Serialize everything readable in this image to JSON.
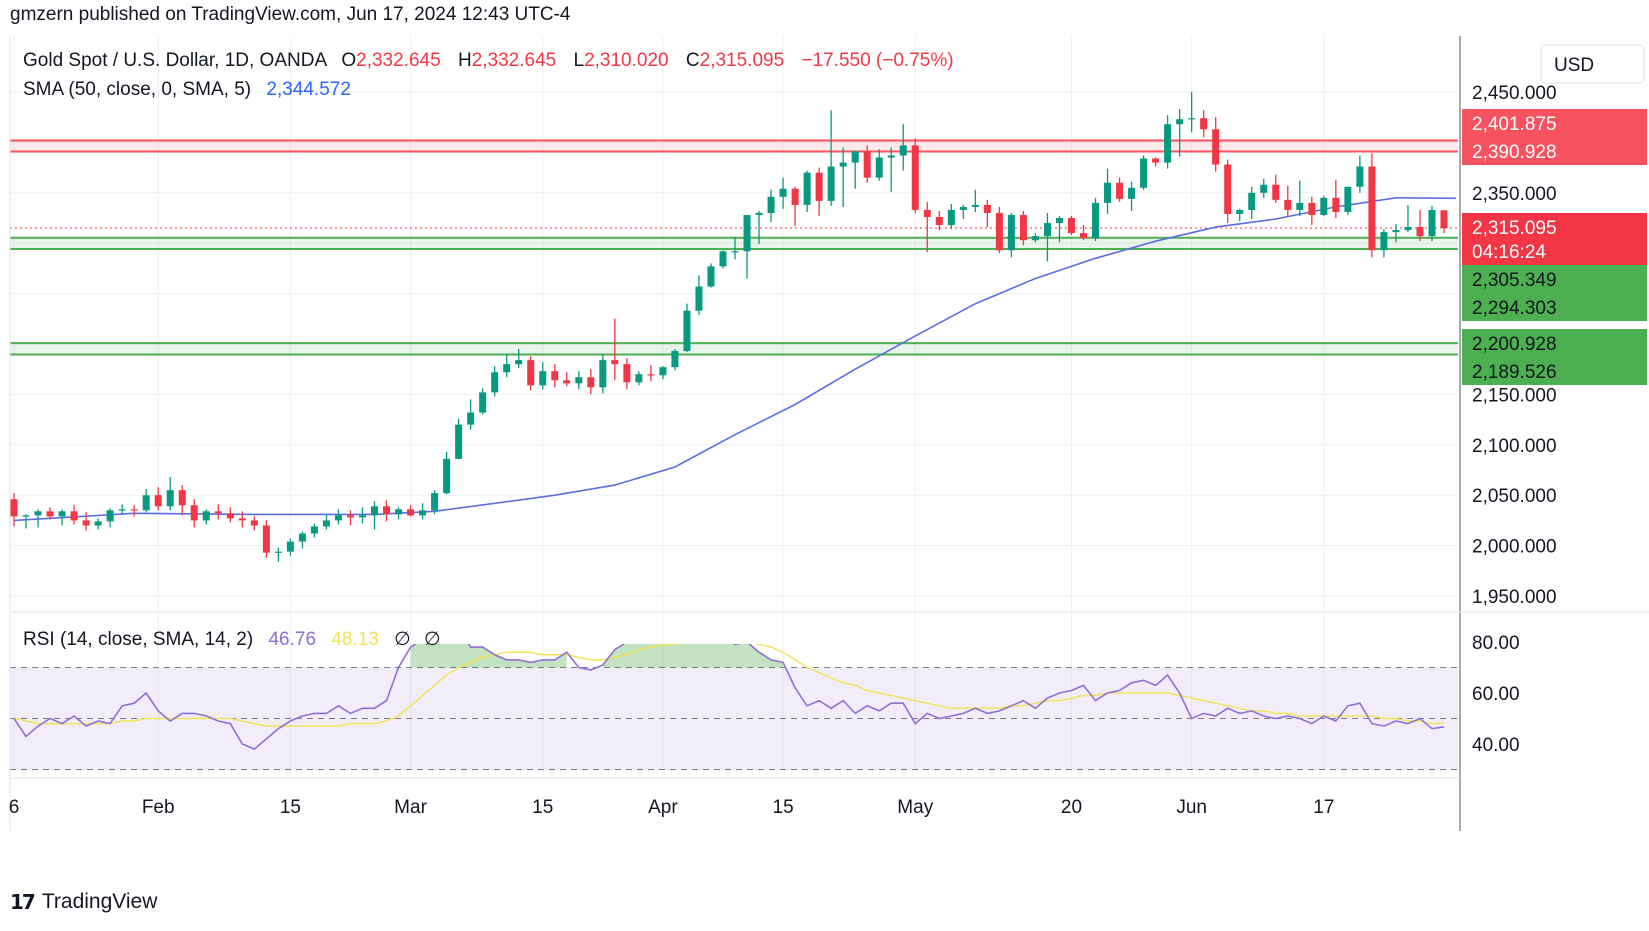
{
  "header": {
    "publish_line": "gmzern published on TradingView.com, Jun 17, 2024 12:43 UTC-4"
  },
  "footer": {
    "logo_glyph": "17",
    "brand": "TradingView"
  },
  "currency": "USD",
  "legend": {
    "symbol": "Gold Spot / U.S. Dollar, 1D, OANDA",
    "o_label": "O",
    "o_value": "2,332.645",
    "h_label": "H",
    "h_value": "2,332.645",
    "l_label": "L",
    "l_value": "2,310.020",
    "c_label": "C",
    "c_value": "2,315.095",
    "change": "−17.550 (−0.75%)",
    "sma_label": "SMA (50, close, 0, SMA, 5)",
    "sma_value": "2,344.572",
    "rsi_label": "RSI (14, close, SMA, 14, 2)",
    "rsi_value": "46.76",
    "rsi_sma_value": "48.13",
    "rsi_extra1": "∅",
    "rsi_extra2": "∅"
  },
  "price_tags": [
    {
      "text": "2,401.875",
      "bg": "#f7525f"
    },
    {
      "text": "2,390.928",
      "bg": "#f7525f"
    },
    {
      "text": "2,315.095",
      "bg": "#f23645"
    },
    {
      "text": "04:16:24",
      "bg": "#f23645"
    },
    {
      "text": "2,305.349",
      "bg": "#4caf50"
    },
    {
      "text": "2,294.303",
      "bg": "#4caf50"
    },
    {
      "text": "2,200.928",
      "bg": "#4caf50"
    },
    {
      "text": "2,189.526",
      "bg": "#4caf50"
    }
  ],
  "colors": {
    "up": "#089981",
    "down": "#f23645",
    "sma": "#5b6ee1",
    "rsi": "#8e6fd6",
    "rsi_sma": "#f2e35a",
    "resistance": "#f7525f",
    "support": "#4caf50",
    "grid": "#eef0f3"
  },
  "chart_data": [
    {
      "type": "candlestick",
      "title": "Gold Spot / U.S. Dollar, 1D, OANDA",
      "price_axis_ticks": [
        "2,450.000",
        "2,350.000",
        "2,150.000",
        "2,100.000",
        "2,050.000",
        "2,000.000",
        "1,950.000"
      ],
      "time_axis_ticks": [
        "6",
        "Feb",
        "15",
        "Mar",
        "15",
        "Apr",
        "15",
        "May",
        "20",
        "Jun",
        "17"
      ],
      "ylim": [
        1940,
        2455
      ],
      "horizontal_levels": {
        "resistance": [
          2401.875,
          2390.928
        ],
        "support_upper": [
          2305.349,
          2294.303
        ],
        "support_lower": [
          2200.928,
          2189.526
        ],
        "last_close": 2315.095
      },
      "candles_ohlc": [
        [
          2046,
          2052,
          2019,
          2029
        ],
        [
          2029,
          2031,
          2017,
          2030
        ],
        [
          2030,
          2036,
          2018,
          2034
        ],
        [
          2034,
          2038,
          2026,
          2029
        ],
        [
          2029,
          2036,
          2020,
          2034
        ],
        [
          2034,
          2040,
          2021,
          2025
        ],
        [
          2025,
          2033,
          2015,
          2020
        ],
        [
          2020,
          2027,
          2016,
          2024
        ],
        [
          2024,
          2037,
          2018,
          2035
        ],
        [
          2035,
          2041,
          2031,
          2036
        ],
        [
          2036,
          2040,
          2029,
          2035
        ],
        [
          2035,
          2056,
          2033,
          2050
        ],
        [
          2050,
          2058,
          2035,
          2039
        ],
        [
          2039,
          2068,
          2035,
          2055
        ],
        [
          2055,
          2060,
          2030,
          2040
        ],
        [
          2040,
          2046,
          2018,
          2025
        ],
        [
          2025,
          2036,
          2021,
          2034
        ],
        [
          2034,
          2041,
          2026,
          2032
        ],
        [
          2032,
          2038,
          2023,
          2027
        ],
        [
          2027,
          2034,
          2018,
          2025
        ],
        [
          2025,
          2029,
          2015,
          2020
        ],
        [
          2020,
          2025,
          1988,
          1993
        ],
        [
          1993,
          1998,
          1984,
          1994
        ],
        [
          1994,
          2007,
          1990,
          2004
        ],
        [
          2004,
          2014,
          1997,
          2012
        ],
        [
          2012,
          2022,
          2008,
          2019
        ],
        [
          2019,
          2031,
          2016,
          2025
        ],
        [
          2025,
          2036,
          2021,
          2030
        ],
        [
          2030,
          2035,
          2020,
          2028
        ],
        [
          2028,
          2038,
          2022,
          2030
        ],
        [
          2030,
          2044,
          2016,
          2039
        ],
        [
          2039,
          2045,
          2024,
          2031
        ],
        [
          2031,
          2038,
          2026,
          2036
        ],
        [
          2036,
          2040,
          2029,
          2030
        ],
        [
          2030,
          2042,
          2026,
          2035
        ],
        [
          2035,
          2055,
          2031,
          2052
        ],
        [
          2052,
          2093,
          2051,
          2086
        ],
        [
          2086,
          2126,
          2086,
          2120
        ],
        [
          2120,
          2145,
          2115,
          2132
        ],
        [
          2132,
          2156,
          2130,
          2152
        ],
        [
          2152,
          2178,
          2148,
          2172
        ],
        [
          2172,
          2190,
          2167,
          2180
        ],
        [
          2180,
          2195,
          2176,
          2184
        ],
        [
          2184,
          2188,
          2154,
          2159
        ],
        [
          2159,
          2182,
          2155,
          2173
        ],
        [
          2173,
          2180,
          2157,
          2164
        ],
        [
          2164,
          2172,
          2158,
          2161
        ],
        [
          2161,
          2173,
          2155,
          2167
        ],
        [
          2167,
          2175,
          2150,
          2157
        ],
        [
          2157,
          2190,
          2151,
          2184
        ],
        [
          2184,
          2225,
          2164,
          2180
        ],
        [
          2180,
          2186,
          2155,
          2162
        ],
        [
          2162,
          2173,
          2159,
          2170
        ],
        [
          2170,
          2179,
          2163,
          2169
        ],
        [
          2169,
          2178,
          2165,
          2177
        ],
        [
          2177,
          2195,
          2174,
          2193
        ],
        [
          2193,
          2240,
          2192,
          2233
        ],
        [
          2233,
          2268,
          2229,
          2257
        ],
        [
          2257,
          2280,
          2256,
          2277
        ],
        [
          2277,
          2293,
          2275,
          2292
        ],
        [
          2292,
          2306,
          2284,
          2292
        ],
        [
          2292,
          2307,
          2265,
          2328
        ],
        [
          2328,
          2332,
          2299,
          2330
        ],
        [
          2330,
          2353,
          2321,
          2346
        ],
        [
          2346,
          2365,
          2334,
          2354
        ],
        [
          2354,
          2356,
          2317,
          2338
        ],
        [
          2338,
          2372,
          2331,
          2370
        ],
        [
          2370,
          2375,
          2327,
          2342
        ],
        [
          2342,
          2432,
          2337,
          2376
        ],
        [
          2376,
          2395,
          2336,
          2380
        ],
        [
          2380,
          2392,
          2354,
          2391
        ],
        [
          2391,
          2397,
          2360,
          2365
        ],
        [
          2365,
          2393,
          2362,
          2385
        ],
        [
          2385,
          2395,
          2351,
          2387
        ],
        [
          2387,
          2418,
          2372,
          2397
        ],
        [
          2397,
          2404,
          2330,
          2333
        ],
        [
          2333,
          2341,
          2291,
          2326
        ],
        [
          2326,
          2332,
          2313,
          2318
        ],
        [
          2318,
          2339,
          2314,
          2333
        ],
        [
          2333,
          2338,
          2324,
          2336
        ],
        [
          2336,
          2353,
          2331,
          2338
        ],
        [
          2338,
          2343,
          2316,
          2330
        ],
        [
          2330,
          2336,
          2290,
          2293
        ],
        [
          2293,
          2330,
          2286,
          2328
        ],
        [
          2328,
          2332,
          2298,
          2303
        ],
        [
          2303,
          2310,
          2301,
          2307
        ],
        [
          2307,
          2330,
          2282,
          2320
        ],
        [
          2320,
          2327,
          2301,
          2325
        ],
        [
          2325,
          2327,
          2308,
          2310
        ],
        [
          2310,
          2318,
          2303,
          2305
        ],
        [
          2305,
          2345,
          2302,
          2340
        ],
        [
          2340,
          2374,
          2329,
          2360
        ],
        [
          2360,
          2365,
          2341,
          2344
        ],
        [
          2344,
          2361,
          2332,
          2355
        ],
        [
          2355,
          2387,
          2353,
          2384
        ],
        [
          2384,
          2385,
          2376,
          2380
        ],
        [
          2380,
          2427,
          2374,
          2418
        ],
        [
          2418,
          2433,
          2386,
          2423
        ],
        [
          2423,
          2450,
          2410,
          2424
        ],
        [
          2424,
          2432,
          2405,
          2413
        ],
        [
          2413,
          2425,
          2371,
          2378
        ],
        [
          2378,
          2383,
          2320,
          2329
        ],
        [
          2329,
          2334,
          2322,
          2333
        ],
        [
          2333,
          2356,
          2324,
          2350
        ],
        [
          2350,
          2364,
          2345,
          2358
        ],
        [
          2358,
          2368,
          2340,
          2343
        ],
        [
          2343,
          2357,
          2327,
          2333
        ],
        [
          2333,
          2362,
          2327,
          2340
        ],
        [
          2340,
          2346,
          2318,
          2328
        ],
        [
          2328,
          2347,
          2327,
          2345
        ],
        [
          2345,
          2363,
          2325,
          2331
        ],
        [
          2331,
          2355,
          2328,
          2356
        ],
        [
          2356,
          2387,
          2350,
          2376
        ],
        [
          2376,
          2389,
          2286,
          2293
        ],
        [
          2293,
          2314,
          2286,
          2311
        ],
        [
          2311,
          2319,
          2301,
          2313
        ],
        [
          2313,
          2338,
          2311,
          2316
        ],
        [
          2316,
          2333,
          2302,
          2307
        ],
        [
          2307,
          2337,
          2302,
          2333
        ],
        [
          2332.645,
          2332.645,
          2310.02,
          2315.095
        ]
      ],
      "sma50": [
        [
          0,
          2025
        ],
        [
          10,
          2032
        ],
        [
          20,
          2031
        ],
        [
          30,
          2031
        ],
        [
          35,
          2034
        ],
        [
          40,
          2042
        ],
        [
          45,
          2050
        ],
        [
          50,
          2060
        ],
        [
          55,
          2078
        ],
        [
          60,
          2110
        ],
        [
          65,
          2140
        ],
        [
          70,
          2175
        ],
        [
          75,
          2208
        ],
        [
          80,
          2240
        ],
        [
          85,
          2265
        ],
        [
          90,
          2285
        ],
        [
          95,
          2302
        ],
        [
          100,
          2316
        ],
        [
          105,
          2324
        ],
        [
          110,
          2336
        ],
        [
          115,
          2345
        ],
        [
          120,
          2344.572
        ]
      ]
    },
    {
      "type": "line",
      "title": "RSI (14, close, SMA, 14, 2)",
      "yticks": [
        "80.00",
        "60.00",
        "40.00"
      ],
      "levels": [
        70,
        50,
        30
      ],
      "ylim": [
        25,
        95
      ],
      "series": [
        {
          "name": "RSI",
          "values": [
            50,
            43,
            47,
            50,
            48,
            51,
            47,
            49,
            48,
            55,
            56,
            60,
            53,
            49,
            52,
            52,
            51,
            49,
            48,
            40,
            38,
            42,
            46,
            49,
            51,
            52,
            52,
            55,
            52,
            54,
            54,
            57,
            70,
            78,
            81,
            83,
            85,
            86,
            78,
            78,
            75,
            73,
            73,
            72,
            73,
            73,
            76,
            70,
            69,
            71,
            77,
            80,
            82,
            85,
            83,
            85,
            86,
            87,
            83,
            85,
            79,
            80,
            76,
            73,
            72,
            62,
            55,
            57,
            54,
            57,
            52,
            55,
            53,
            56,
            56,
            48,
            52,
            50,
            51,
            52,
            54,
            52,
            53,
            55,
            57,
            54,
            58,
            60,
            61,
            63,
            57,
            60,
            61,
            64,
            65,
            63,
            67,
            60,
            50,
            52,
            51,
            54,
            52,
            53,
            51,
            50,
            51,
            50,
            48,
            51,
            49,
            55,
            56,
            48,
            47,
            49,
            48,
            50,
            46,
            46.76
          ]
        },
        {
          "name": "RSI SMA",
          "values": [
            50,
            49,
            48,
            48,
            48,
            48,
            48,
            48,
            48,
            49,
            49,
            50,
            50,
            50,
            50,
            50,
            50,
            50,
            50,
            49,
            48,
            47,
            47,
            47,
            47,
            47,
            47,
            47,
            48,
            48,
            48,
            49,
            51,
            55,
            59,
            63,
            67,
            70,
            72,
            74,
            75,
            76,
            76,
            76,
            75,
            75,
            75,
            74,
            73,
            73,
            74,
            75,
            77,
            78,
            79,
            79,
            80,
            80,
            80,
            80,
            80,
            80,
            79,
            78,
            76,
            73,
            70,
            68,
            66,
            64,
            63,
            61,
            60,
            59,
            58,
            57,
            56,
            55,
            54,
            54,
            54,
            54,
            54,
            55,
            55,
            56,
            57,
            57,
            58,
            59,
            59,
            60,
            60,
            60,
            60,
            60,
            60,
            59,
            58,
            57,
            56,
            55,
            54,
            53,
            53,
            52,
            52,
            51,
            51,
            51,
            51,
            51,
            51,
            51,
            50,
            50,
            49,
            49,
            48,
            48.13
          ]
        }
      ]
    }
  ]
}
